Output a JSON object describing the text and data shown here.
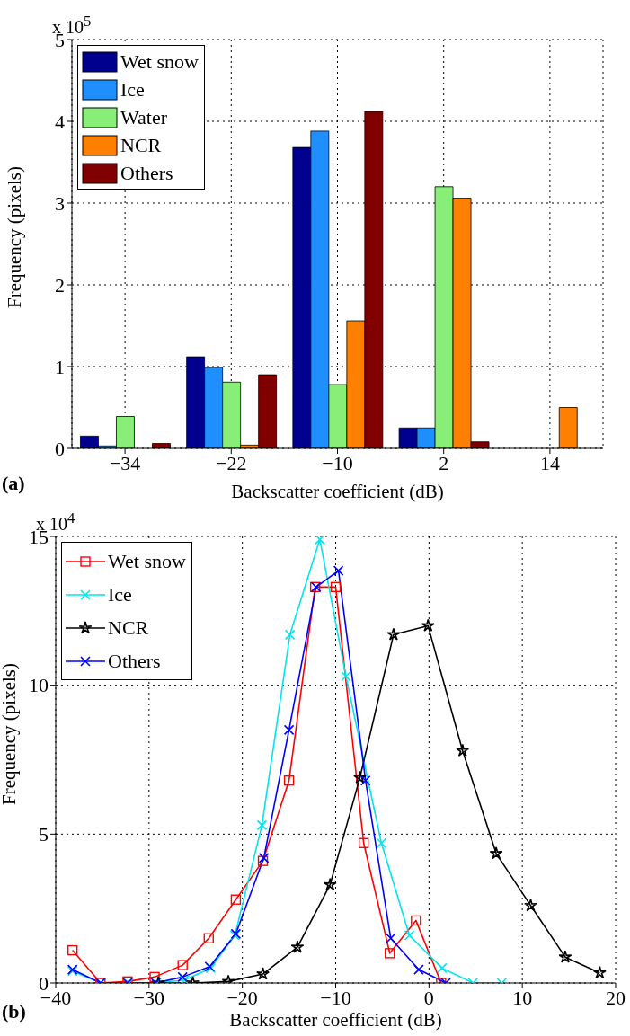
{
  "chart_data": [
    {
      "type": "bar",
      "xlabel": "Backscatter coefficient (dB)",
      "ylabel": "Frequency (pixels)",
      "categories": [
        "−34",
        "−22",
        "−10",
        "2",
        "14"
      ],
      "series": [
        {
          "name": "Wet snow",
          "color": "#00008f",
          "values": [
            0.15,
            1.12,
            3.68,
            0.25,
            0
          ]
        },
        {
          "name": "Ice",
          "color": "#1f8fff",
          "values": [
            0.03,
            0.99,
            3.88,
            0.25,
            0
          ]
        },
        {
          "name": "Water",
          "color": "#88ee77",
          "values": [
            0.39,
            0.81,
            0.78,
            3.2,
            0
          ]
        },
        {
          "name": "NCR",
          "color": "#ff7f00",
          "values": [
            0,
            0.04,
            1.56,
            3.06,
            0.5
          ]
        },
        {
          "name": "Others",
          "color": "#800000",
          "values": [
            0.06,
            0.9,
            4.12,
            0.08,
            0
          ]
        }
      ],
      "ylim": [
        0,
        5
      ],
      "yticks": [
        0,
        1,
        2,
        3,
        4,
        5
      ],
      "grid": true,
      "legend": "top left",
      "annotations": [
        "x 10$^{5}$",
        "(a)"
      ]
    },
    {
      "type": "line",
      "xlabel": "Backscatter coefficient (dB)",
      "ylabel": "Frequency (pixels)",
      "series": [
        {
          "name": "Wet snow",
          "color": "#ff0000",
          "marker": "square",
          "x": [
            -38.2,
            -35.2,
            -32.3,
            -29.4,
            -26.4,
            -23.6,
            -20.7,
            -17.8,
            -15,
            -12.2,
            -10,
            -7,
            -4.2,
            -1.4,
            1.3
          ],
          "values": [
            1.1,
            0,
            0.05,
            0.2,
            0.6,
            1.5,
            2.8,
            4.1,
            6.8,
            13.3,
            13.3,
            4.7,
            1,
            2.1,
            0
          ]
        },
        {
          "name": "Ice",
          "color": "#00e5ee",
          "marker": "cross",
          "x": [
            -38.2,
            -35.2,
            -32.2,
            -29.2,
            -26.2,
            -23.4,
            -20.8,
            -17.9,
            -14.9,
            -11.7,
            -8.9,
            -5.1,
            -2.1,
            1.4,
            4.7,
            7.8
          ],
          "values": [
            0.4,
            0,
            0,
            0,
            0.1,
            0.5,
            1.6,
            5.3,
            11.7,
            14.9,
            10.3,
            4.7,
            1.6,
            0.5,
            0,
            0
          ]
        },
        {
          "name": "NCR",
          "color": "#000000",
          "marker": "star",
          "x": [
            -29,
            -25.3,
            -21.5,
            -17.8,
            -14.1,
            -10.6,
            -7.4,
            -3.8,
            -0.1,
            3.6,
            7.2,
            10.9,
            14.6,
            18.3
          ],
          "values": [
            0,
            0,
            0.05,
            0.3,
            1.2,
            3.3,
            6.9,
            11.7,
            12,
            7.8,
            4.35,
            2.6,
            0.87,
            0.34
          ]
        },
        {
          "name": "Others",
          "color": "#0000ff",
          "marker": "cross",
          "x": [
            -38.2,
            -35.2,
            -32.3,
            -29.3,
            -26.4,
            -23.5,
            -20.7,
            -17.7,
            -15,
            -12.1,
            -9.7,
            -6.8,
            -4.1,
            -1.1,
            1.8
          ],
          "values": [
            0.45,
            0,
            0,
            0,
            0.2,
            0.55,
            1.65,
            4.2,
            8.5,
            13.3,
            13.85,
            6.8,
            1.5,
            0.45,
            0
          ]
        }
      ],
      "xlim": [
        -40,
        20
      ],
      "xticks": [
        {
          "value": -40,
          "label": "−40"
        },
        {
          "value": -30,
          "label": "−30"
        },
        {
          "value": -20,
          "label": "−20"
        },
        {
          "value": -10,
          "label": "−10"
        },
        0,
        10,
        20
      ],
      "ylim": [
        0,
        15
      ],
      "yticks": [
        0,
        5,
        10,
        15
      ],
      "grid": true,
      "legend": "top left",
      "line_style": "solid",
      "annotations": [
        "x 10$^{4}$",
        "(b)"
      ]
    }
  ]
}
